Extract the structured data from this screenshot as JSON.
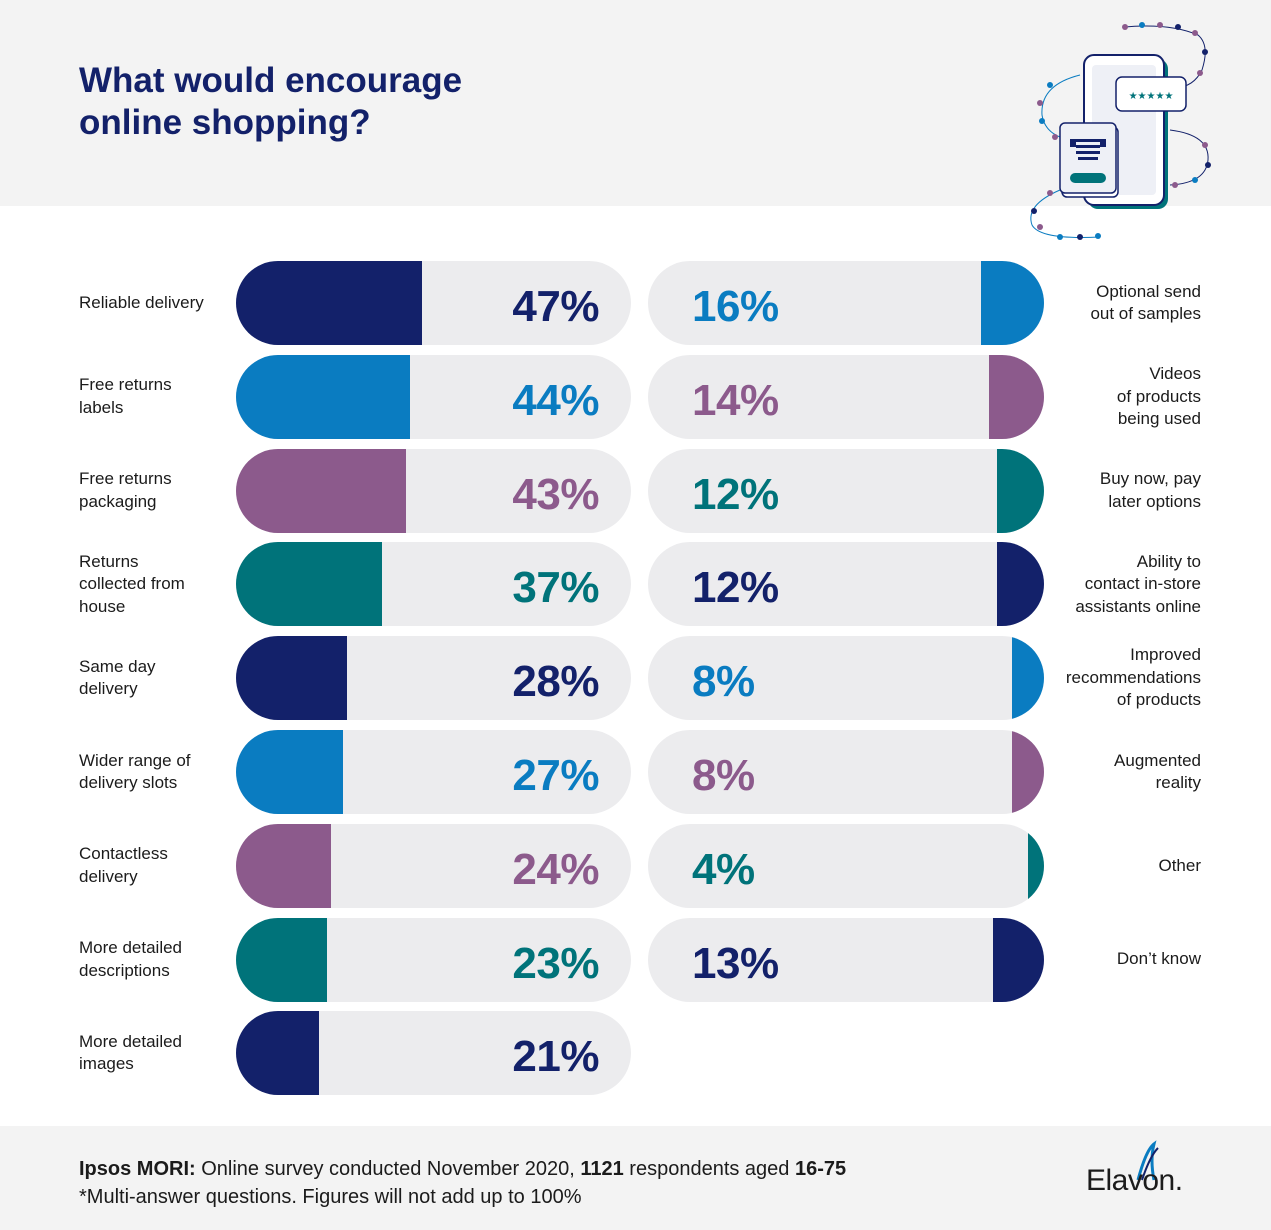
{
  "header": {
    "title": "What would encourage\nonline shopping?"
  },
  "colors": {
    "navy": "#13216a",
    "blue": "#0a7cc1",
    "purple": "#8c5a8c",
    "teal": "#00737a",
    "track": "#ececee",
    "header_bg": "#f3f3f3"
  },
  "chart_data": {
    "type": "bar",
    "title": "What would encourage online shopping?",
    "unit": "%",
    "value_range": [
      0,
      100
    ],
    "series": [
      {
        "name": "left_column",
        "categories": [
          "Reliable delivery",
          "Free returns\nlabels",
          "Free returns\npackaging",
          "Returns\ncollected from\nhouse",
          "Same day\ndelivery",
          "Wider range of\ndelivery slots",
          "Contactless\ndelivery",
          "More detailed\ndescriptions",
          "More detailed\nimages"
        ],
        "values": [
          47,
          44,
          43,
          37,
          28,
          27,
          24,
          23,
          21
        ],
        "display": [
          "47%",
          "44%",
          "43%",
          "37%",
          "28%",
          "27%",
          "24%",
          "23%",
          "21%"
        ],
        "colors": [
          "navy",
          "blue",
          "purple",
          "teal",
          "navy",
          "blue",
          "purple",
          "teal",
          "navy"
        ]
      },
      {
        "name": "right_column",
        "categories": [
          "Optional send\nout of samples",
          "Videos\nof products\nbeing used",
          "Buy now, pay\nlater options",
          "Ability to\ncontact in-store\nassistants online",
          "Improved\nrecommendations\nof products",
          "Augmented\nreality",
          "Other",
          "Don’t know"
        ],
        "values": [
          16,
          14,
          12,
          12,
          8,
          8,
          4,
          13
        ],
        "display": [
          "16%",
          "14%",
          "12%",
          "12%",
          "8%",
          "8%",
          "4%",
          "13%"
        ],
        "colors": [
          "blue",
          "purple",
          "teal",
          "navy",
          "blue",
          "purple",
          "teal",
          "navy"
        ]
      }
    ]
  },
  "footer": {
    "source_label": "Ipsos MORI:",
    "source_text_1": " Online survey conducted November 2020, ",
    "respondents": "1121",
    "source_text_2": " respondents aged ",
    "age_range": "16-75",
    "note": "*Multi-answer questions. Figures will not add up to 100%",
    "logo_text": "Elavon."
  },
  "illustration": {
    "rating_stars": "★★★★★"
  }
}
